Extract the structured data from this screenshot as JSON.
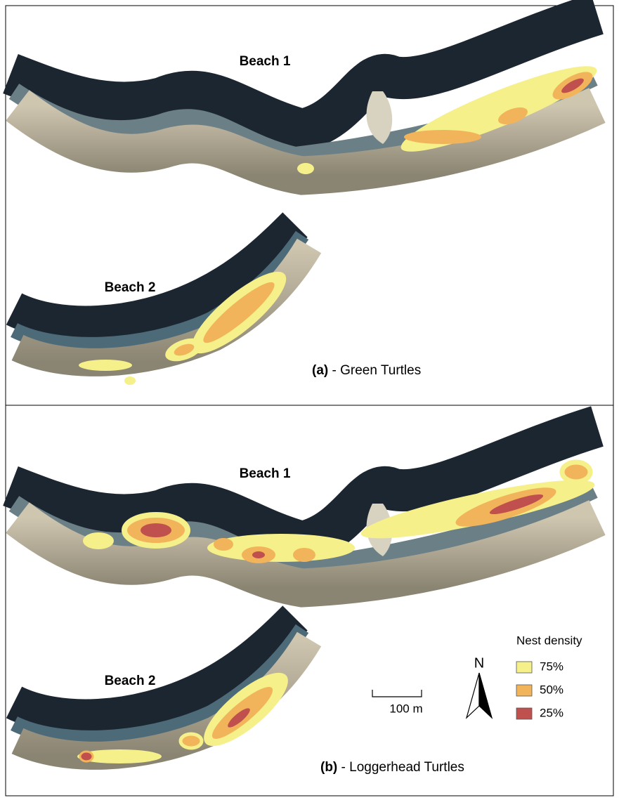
{
  "panels": [
    {
      "beach_1": "Beach 1",
      "beach_2": "Beach 2",
      "label": "(a)",
      "caption": " - Green Turtles"
    },
    {
      "beach_1": "Beach 1",
      "beach_2": "Beach 2",
      "label": "(b)",
      "caption": " - Loggerhead Turtles"
    }
  ],
  "legend": {
    "title": "Nest density",
    "items": [
      {
        "label": "75%",
        "color": "#f5f08a"
      },
      {
        "label": "50%",
        "color": "#f2b45a"
      },
      {
        "label": "25%",
        "color": "#c0504d"
      }
    ]
  },
  "scale_bar": "100 m",
  "north": "N"
}
